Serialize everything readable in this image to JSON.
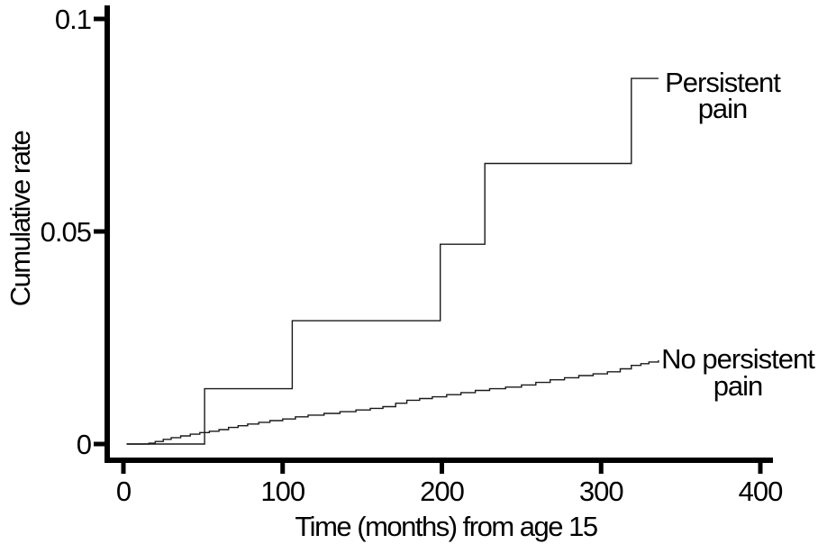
{
  "chart_data": {
    "type": "line",
    "subtype": "step",
    "title": "",
    "xlabel": "Time (months) from age 15",
    "ylabel": "Cumulative rate",
    "xlim": [
      0,
      400
    ],
    "ylim": [
      0,
      0.1
    ],
    "grid": false,
    "legend_position": "inline-annotations",
    "x_ticks": [
      0,
      100,
      200,
      300,
      400
    ],
    "x_tick_labels": [
      "0",
      "100",
      "200",
      "300",
      "400"
    ],
    "y_ticks": [
      0,
      0.05,
      0.1
    ],
    "y_tick_labels": [
      "0",
      "0.05",
      "0.1"
    ],
    "axis_color": "#000000",
    "curve_color": "#1a1a1a",
    "series": [
      {
        "name": "Persistent pain",
        "label_lines": [
          "Persistent",
          "pain"
        ],
        "interpolation": "explicit",
        "points": [
          [
            2,
            0
          ],
          [
            51,
            0
          ],
          [
            51,
            0.013
          ],
          [
            106,
            0.013
          ],
          [
            106,
            0.029
          ],
          [
            199,
            0.029
          ],
          [
            199,
            0.047
          ],
          [
            227,
            0.047
          ],
          [
            227,
            0.066
          ],
          [
            319,
            0.066
          ],
          [
            319,
            0.086
          ],
          [
            336,
            0.086
          ]
        ]
      },
      {
        "name": "No persistent pain",
        "label_lines": [
          "No persistent",
          "pain"
        ],
        "interpolation": "step-after",
        "points": [
          [
            2,
            0
          ],
          [
            16,
            0.0002
          ],
          [
            20,
            0.0006
          ],
          [
            25,
            0.0011
          ],
          [
            30,
            0.0015
          ],
          [
            36,
            0.0019
          ],
          [
            42,
            0.0023
          ],
          [
            48,
            0.0027
          ],
          [
            54,
            0.003
          ],
          [
            60,
            0.0034
          ],
          [
            66,
            0.0039
          ],
          [
            72,
            0.0043
          ],
          [
            78,
            0.0047
          ],
          [
            85,
            0.0051
          ],
          [
            92,
            0.0055
          ],
          [
            100,
            0.0059
          ],
          [
            108,
            0.0064
          ],
          [
            116,
            0.0068
          ],
          [
            126,
            0.0072
          ],
          [
            136,
            0.0076
          ],
          [
            146,
            0.008
          ],
          [
            155,
            0.0084
          ],
          [
            163,
            0.0088
          ],
          [
            171,
            0.0096
          ],
          [
            178,
            0.0103
          ],
          [
            186,
            0.0107
          ],
          [
            194,
            0.0111
          ],
          [
            203,
            0.0116
          ],
          [
            212,
            0.0121
          ],
          [
            221,
            0.0126
          ],
          [
            230,
            0.013
          ],
          [
            240,
            0.0134
          ],
          [
            250,
            0.0139
          ],
          [
            259,
            0.0145
          ],
          [
            268,
            0.0151
          ],
          [
            277,
            0.0156
          ],
          [
            286,
            0.0161
          ],
          [
            295,
            0.0165
          ],
          [
            304,
            0.017
          ],
          [
            312,
            0.0177
          ],
          [
            319,
            0.0185
          ],
          [
            325,
            0.0189
          ],
          [
            330,
            0.0193
          ],
          [
            336,
            0.0197
          ]
        ]
      }
    ]
  }
}
